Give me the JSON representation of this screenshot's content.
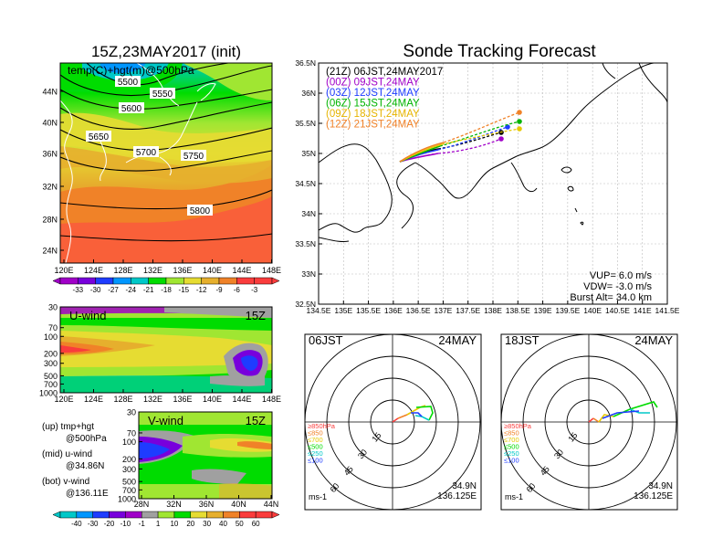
{
  "colors": {
    "temp": [
      "#a000c8",
      "#7800dc",
      "#1e3cff",
      "#0096ff",
      "#00c8c8",
      "#00dc00",
      "#a0e632",
      "#e6dc32",
      "#e6af2d",
      "#f08228",
      "#fa3c3c"
    ],
    "wind": [
      "#00c8c8",
      "#0096ff",
      "#1e3cff",
      "#7800dc",
      "#a000c8",
      "#a0a0a0",
      "#a0e632",
      "#00dc00",
      "#e6dc32",
      "#e6af2d",
      "#f08228",
      "#fa3c3c"
    ]
  },
  "map500": {
    "title": "15Z,23MAY2017 (init)",
    "label": "temp(C)+hgt(m)@500hPa",
    "lat_ticks": [
      "44N",
      "40N",
      "36N",
      "32N",
      "28N",
      "24N"
    ],
    "lon_ticks": [
      "120E",
      "124E",
      "128E",
      "132E",
      "136E",
      "140E",
      "144E",
      "148E"
    ],
    "contours": [
      "5500",
      "5550",
      "5600",
      "5650",
      "5700",
      "5750",
      "5800"
    ],
    "colorbar_ticks": [
      "-33",
      "-30",
      "-27",
      "-24",
      "-21",
      "-18",
      "-15",
      "-12",
      "-9",
      "-6",
      "-3"
    ]
  },
  "uwind": {
    "label": "U-wind",
    "time": "15Z",
    "p_ticks": [
      "30",
      "70",
      "100",
      "200",
      "300",
      "500",
      "700",
      "1000"
    ],
    "lon_ticks": [
      "120E",
      "124E",
      "128E",
      "132E",
      "136E",
      "140E",
      "144E",
      "148E"
    ]
  },
  "vwind": {
    "label": "V-wind",
    "time": "15Z",
    "p_ticks": [
      "30",
      "70",
      "100",
      "200",
      "300",
      "500",
      "700",
      "1000"
    ],
    "lat_ticks": [
      "28N",
      "32N",
      "36N",
      "40N",
      "44N"
    ]
  },
  "legend": {
    "l1a": "(up) tmp+hgt",
    "l1b": "@500hPa",
    "l2a": "(mid) u-wind",
    "l2b": "@34.86N",
    "l3a": "(bot) v-wind",
    "l3b": "@136.11E"
  },
  "wind_colorbar_ticks": [
    "-40",
    "-30",
    "-20",
    "-10",
    "-1",
    "1",
    "10",
    "20",
    "30",
    "40",
    "50",
    "60"
  ],
  "track": {
    "title": "Sonde Tracking Forecast",
    "lat_ticks": [
      "36.5N",
      "36N",
      "35.5N",
      "35N",
      "34.5N",
      "34N",
      "33.5N",
      "33N",
      "32.5N"
    ],
    "lon_ticks": [
      "134.5E",
      "135E",
      "135.5E",
      "136E",
      "136.5E",
      "137E",
      "137.5E",
      "138E",
      "138.5E",
      "139E",
      "139.5E",
      "140E",
      "140.5E",
      "141E",
      "141.5E"
    ],
    "runs": [
      {
        "label": "(21Z)  06JST,24MAY2017",
        "color": "#000000"
      },
      {
        "label": "(00Z)  09JST,24MAY",
        "color": "#a000c8"
      },
      {
        "label": "(03Z)  12JST,24MAY",
        "color": "#1e3cff"
      },
      {
        "label": "(06Z)  15JST,24MAY",
        "color": "#00b400"
      },
      {
        "label": "(09Z)  18JST,24MAY",
        "color": "#e6c800"
      },
      {
        "label": "(12Z)  21JST,24MAY",
        "color": "#f08228"
      }
    ],
    "vup": "VUP=  6.0  m/s",
    "vdw": "VDW=  -3.0  m/s",
    "burst": "Burst Alt=  34.0  km"
  },
  "polar_left": {
    "time": "06JST",
    "date": "24MAY",
    "rings": [
      "15",
      "30",
      "45",
      "60"
    ],
    "levels": [
      "≥850hPa",
      "≤850",
      "≤700",
      "≤500",
      "≤250",
      "≤100"
    ],
    "unit": "ms-1",
    "lat": "34.9N",
    "lon": "136.125E"
  },
  "polar_right": {
    "time": "18JST",
    "date": "24MAY",
    "rings": [
      "15",
      "30",
      "45",
      "60"
    ],
    "levels": [
      "≥850hPa",
      "≤850",
      "≤700",
      "≤500",
      "≤250",
      "≤100"
    ],
    "unit": "ms-1",
    "lat": "34.9N",
    "lon": "136.125E"
  },
  "level_colors": [
    "#fa3c3c",
    "#f08228",
    "#e6c800",
    "#00dc00",
    "#00c8c8",
    "#1e3cff"
  ]
}
